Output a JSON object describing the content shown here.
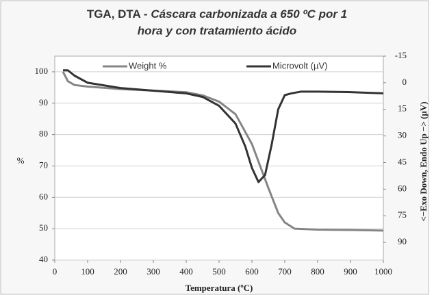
{
  "chart_data": {
    "type": "line",
    "title": [
      "TGA, DTA - ",
      "Cáscara carbonizada a 650 ºC por 1",
      "hora y con tratamiento ácido"
    ],
    "xlabel": "Temperatura (ºC)",
    "ylabel": "%",
    "y2label": "<−Exo Down, Endo Up −> (µV)",
    "xlim": [
      0,
      1000
    ],
    "xticks": [
      0,
      100,
      200,
      300,
      400,
      500,
      600,
      700,
      800,
      900,
      1000
    ],
    "ylim": [
      40,
      105
    ],
    "yticks": [
      40,
      50,
      60,
      70,
      80,
      90,
      100
    ],
    "y2lim": [
      100,
      -15
    ],
    "y2ticks": [
      -15,
      0,
      15,
      30,
      45,
      60,
      75,
      90
    ],
    "grid": true,
    "series": [
      {
        "name": "Weight %",
        "color": "#858585",
        "x": [
          25,
          30,
          40,
          60,
          100,
          200,
          300,
          400,
          450,
          500,
          550,
          600,
          650,
          680,
          700,
          730,
          800,
          900,
          1000
        ],
        "values": [
          100,
          99,
          97,
          95.8,
          95.3,
          94.5,
          94,
          93.5,
          92.5,
          90.5,
          86.5,
          77,
          63,
          55,
          52,
          50,
          49.7,
          49.6,
          49.4
        ]
      },
      {
        "name": "Microvolt (µV)",
        "color": "#333333",
        "axis": "y2",
        "x": [
          25,
          40,
          60,
          100,
          200,
          300,
          400,
          450,
          500,
          550,
          580,
          600,
          620,
          640,
          660,
          680,
          700,
          720,
          750,
          800,
          900,
          1000
        ],
        "values": [
          -7,
          -7,
          -4,
          0,
          3,
          4.5,
          6,
          8,
          13,
          23,
          36,
          48,
          56,
          52,
          35,
          15,
          7,
          6,
          5,
          5,
          5.3,
          6
        ]
      }
    ]
  }
}
